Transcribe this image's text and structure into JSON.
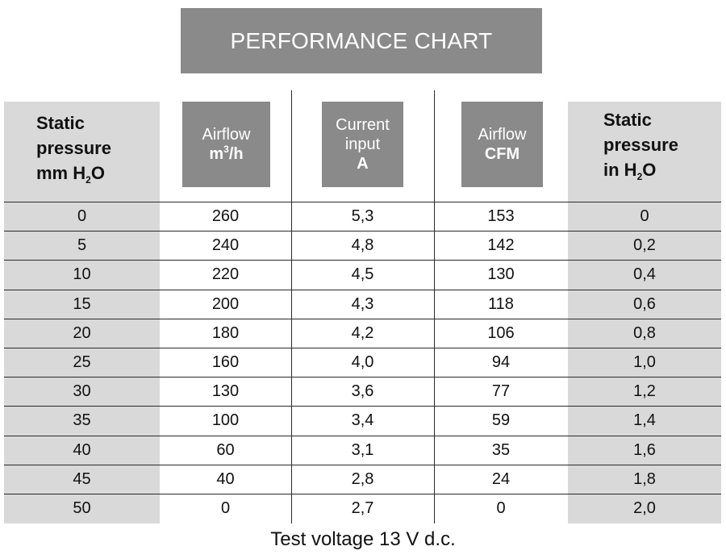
{
  "chart_data": {
    "type": "table",
    "title": "PERFORMANCE CHART",
    "columns": [
      {
        "lines": [
          "Static",
          "pressure",
          "mm H"
        ],
        "sub": "2",
        "tail": "O"
      },
      {
        "label": "Airflow",
        "unit_base": "m",
        "unit_sup": "3",
        "unit_tail": "/h"
      },
      {
        "label": "Current",
        "label2": "input",
        "unit": "A"
      },
      {
        "label": "Airflow",
        "unit": "CFM"
      },
      {
        "lines": [
          "Static",
          "pressure",
          "in H"
        ],
        "sub": "2",
        "tail": "O"
      }
    ],
    "rows": [
      [
        "0",
        "260",
        "5,3",
        "153",
        "0"
      ],
      [
        "5",
        "240",
        "4,8",
        "142",
        "0,2"
      ],
      [
        "10",
        "220",
        "4,5",
        "130",
        "0,4"
      ],
      [
        "15",
        "200",
        "4,3",
        "118",
        "0,6"
      ],
      [
        "20",
        "180",
        "4,2",
        "106",
        "0,8"
      ],
      [
        "25",
        "160",
        "4,0",
        "94",
        "1,0"
      ],
      [
        "30",
        "130",
        "3,6",
        "77",
        "1,2"
      ],
      [
        "35",
        "100",
        "3,4",
        "59",
        "1,4"
      ],
      [
        "40",
        "60",
        "3,1",
        "35",
        "1,6"
      ],
      [
        "45",
        "40",
        "2,8",
        "24",
        "1,8"
      ],
      [
        "50",
        "0",
        "2,7",
        "0",
        "2,0"
      ]
    ],
    "footnote": "Test voltage 13 V d.c."
  },
  "colors": {
    "header_fill": "#8a8a8a",
    "side_column_fill": "#d9d9d9",
    "rule": "#2a2a2a"
  }
}
